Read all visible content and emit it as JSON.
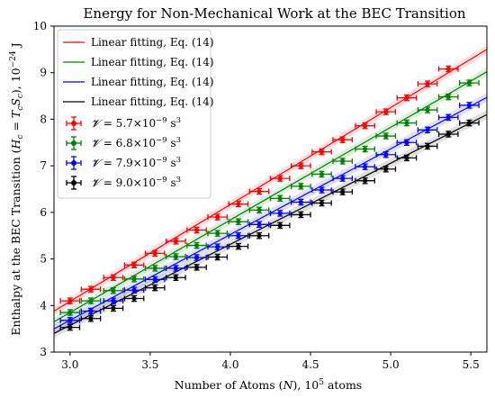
{
  "chart_data": {
    "type": "scatter",
    "title": "Energy for Non-Mechanical Work at the BEC Transition",
    "xlabel": {
      "pre": "Number of Atoms (",
      "var": "N",
      "post": "), 10",
      "sup": "5",
      "tail": " atoms"
    },
    "ylabel": {
      "pre": "Enthalpy at the BEC Transition (",
      "v1": "H",
      "s1": "c",
      "eq": " = ",
      "v2": "T",
      "s2": "c",
      "v3": "S",
      "s3": "c",
      "post": "), 10",
      "sup": "−24",
      "tail": " J"
    },
    "xlim": [
      2.9,
      5.6
    ],
    "ylim": [
      3,
      10
    ],
    "xticks": [
      "3.0",
      "3.5",
      "4.0",
      "4.5",
      "5.0",
      "5.5"
    ],
    "yticks": [
      "3",
      "4",
      "5",
      "6",
      "7",
      "8",
      "9",
      "10"
    ],
    "legend": {
      "position": "top-left",
      "line_label": "Linear fitting, Eq. (14)",
      "series_prefix": "= ",
      "series_symbol": "𝓥",
      "unit": " s",
      "unit_sup": "3"
    },
    "x_error": 0.06,
    "y_error": 0.06,
    "x": [
      3.0,
      3.13,
      3.27,
      3.4,
      3.53,
      3.66,
      3.79,
      3.92,
      4.05,
      4.18,
      4.31,
      4.44,
      4.57,
      4.7,
      4.84,
      4.97,
      5.1,
      5.23,
      5.36,
      5.49
    ],
    "series": [
      {
        "name": "5.7×10",
        "exp": "−9",
        "color": "#ff0000",
        "fit": [
          3.88,
          9.5
        ],
        "y": [
          4.1,
          4.35,
          4.6,
          4.87,
          5.12,
          5.38,
          5.62,
          5.9,
          6.18,
          6.45,
          6.73,
          7.0,
          7.3,
          7.56,
          7.86,
          8.16,
          8.46,
          8.76,
          9.08,
          null
        ]
      },
      {
        "name": "6.8×10",
        "exp": "−9",
        "color": "#008000",
        "fit": [
          3.65,
          9.02
        ],
        "y": [
          3.85,
          4.1,
          4.32,
          4.57,
          4.8,
          5.05,
          5.29,
          5.55,
          5.8,
          6.05,
          6.3,
          6.56,
          6.82,
          7.1,
          7.36,
          7.64,
          7.92,
          8.2,
          8.48,
          8.78
        ]
      },
      {
        "name": "7.9×10",
        "exp": "−9",
        "color": "#0000ff",
        "fit": [
          3.5,
          8.47
        ],
        "y": [
          3.68,
          3.88,
          4.1,
          4.33,
          4.56,
          4.8,
          5.03,
          5.26,
          5.5,
          5.74,
          5.98,
          6.22,
          6.48,
          6.73,
          6.98,
          7.24,
          7.5,
          7.77,
          8.04,
          8.3
        ]
      },
      {
        "name": "9.0×10",
        "exp": "−9",
        "color": "#000000",
        "fit": [
          3.4,
          8.1
        ],
        "y": [
          3.53,
          3.72,
          3.94,
          4.15,
          4.38,
          4.6,
          4.82,
          5.04,
          5.27,
          5.5,
          5.72,
          5.95,
          6.2,
          6.44,
          6.68,
          6.93,
          7.17,
          7.42,
          7.68,
          7.92
        ]
      }
    ]
  }
}
